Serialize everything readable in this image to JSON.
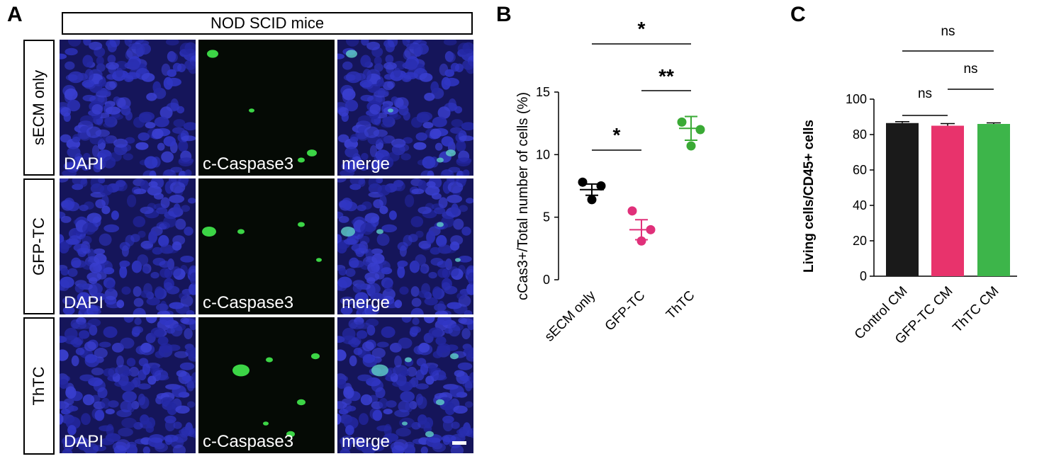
{
  "panelA": {
    "label": "A",
    "header": "NOD SCID mice",
    "rows": [
      "sECM only",
      "GFP-TC",
      "ThTC"
    ],
    "cols": [
      "DAPI",
      "c-Caspase3",
      "merge"
    ]
  },
  "panelB": {
    "label": "B"
  },
  "panelC": {
    "label": "C"
  },
  "chart_data": [
    {
      "type": "scatter",
      "panel": "B",
      "ylabel": "cCas3+/Total number of cells (%)",
      "categories": [
        "sECM only",
        "GFP-TC",
        "ThTC"
      ],
      "ylim": [
        0,
        15
      ],
      "yticks": [
        0,
        5,
        10,
        15
      ],
      "colors": [
        "#000000",
        "#e0307a",
        "#3aaa35"
      ],
      "points": [
        [
          7.8,
          7.5,
          6.4
        ],
        [
          5.5,
          4.0,
          3.1
        ],
        [
          12.6,
          12.0,
          10.7
        ]
      ],
      "means": [
        7.2,
        4.0,
        12.1
      ],
      "sem": [
        0.45,
        0.8,
        0.95
      ],
      "significance": [
        {
          "from": 0,
          "to": 2,
          "label": "*"
        },
        {
          "from": 1,
          "to": 2,
          "label": "**"
        },
        {
          "from": 0,
          "to": 1,
          "label": "*"
        }
      ]
    },
    {
      "type": "bar",
      "panel": "C",
      "ylabel": "Living cells/CD45+ cells",
      "categories": [
        "Control CM",
        "GFP-TC CM",
        "ThTC CM"
      ],
      "values": [
        86.5,
        85.0,
        86.0
      ],
      "sem": [
        0.8,
        1.2,
        0.6
      ],
      "colors": [
        "#1a1a1a",
        "#e8336c",
        "#3db54a"
      ],
      "ylim": [
        0,
        100
      ],
      "yticks": [
        0,
        20,
        40,
        60,
        80,
        100
      ],
      "significance": [
        {
          "from": 0,
          "to": 2,
          "label": "ns"
        },
        {
          "from": 1,
          "to": 2,
          "label": "ns"
        },
        {
          "from": 0,
          "to": 1,
          "label": "ns"
        }
      ]
    }
  ]
}
